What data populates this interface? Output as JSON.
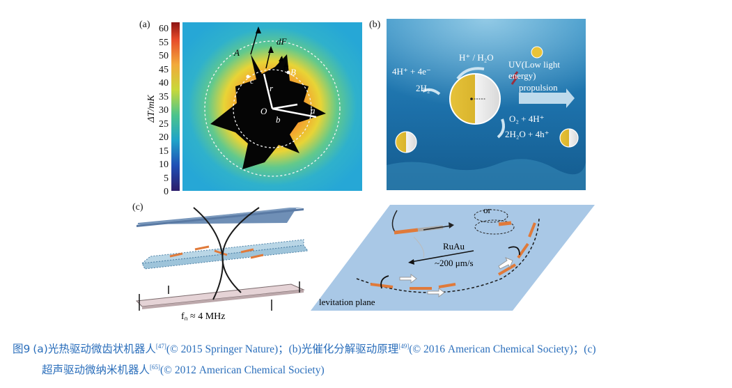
{
  "panels": {
    "a": {
      "label": "(a)",
      "colorbar": {
        "ticks": [
          "60",
          "55",
          "50",
          "45",
          "40",
          "35",
          "30",
          "25",
          "20",
          "15",
          "10",
          "5",
          "0"
        ],
        "axis_label": "ΔT/mK"
      },
      "annotations": {
        "A": "A",
        "B": "B",
        "c": "c",
        "dF": "dF",
        "r": "r",
        "O": "O",
        "b": "b",
        "a": "a"
      }
    },
    "b": {
      "label": "(b)",
      "texts": {
        "h_water": "H⁺ / H₂O",
        "uv": "UV(Low light",
        "uv2": "energy)",
        "propulsion": "propulsion",
        "left_top": "4H⁺ + 4e⁻",
        "left_bottom": "2H₂",
        "right_top": "O₂ + 4H⁺",
        "right_bottom": "2H₂O + 4h⁺"
      }
    },
    "c": {
      "label": "(c)",
      "freq": "f₀ ≈ 4 MHz",
      "or": "or",
      "material": "RuAu",
      "speed": "~200 μm/s",
      "plane": "levitation plane"
    }
  },
  "caption": {
    "fig_label": "图9",
    "line1_part1": "(a)光热驱动微齿状机器人",
    "ref1": "[47]",
    "line1_part2": "(© 2015 Springer Nature)；(b)光催化分解驱动原理",
    "ref2": "[49]",
    "line1_part3": "(© 2016 American Chemical Society)；(c)",
    "line2_part1": "超声驱动微纳米机器人",
    "ref3": "[65]",
    "line2_part2": "(© 2012 American Chemical Society)"
  },
  "colors": {
    "caption": "#2a6ebb",
    "water": "#1b6fa6",
    "plane_blue": "#a9c8e6",
    "orange_rod": "#e07a3a"
  }
}
